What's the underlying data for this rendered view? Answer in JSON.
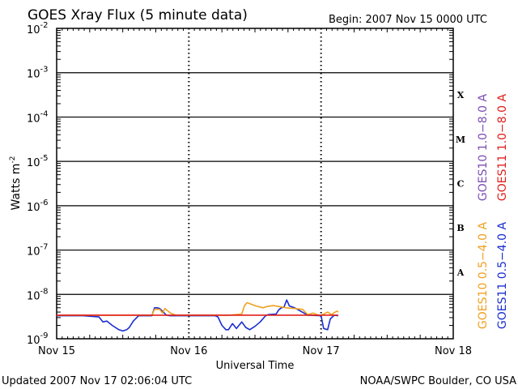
{
  "chart_data": {
    "type": "line",
    "title": "GOES Xray Flux (5 minute data)",
    "begin_label": "Begin:  2007 Nov 15 0000 UTC",
    "ylabel": "Watts m",
    "ylabel_sup": "-2",
    "xlabel": "Universal Time",
    "x_tick_labels": [
      "Nov 15",
      "Nov 16",
      "Nov 17",
      "Nov 18"
    ],
    "xlim_days": [
      0,
      3
    ],
    "y_scale": "log",
    "ylim": [
      1e-09,
      0.01
    ],
    "y_tick_labels": [
      {
        "base": "10",
        "exp": "-2"
      },
      {
        "base": "10",
        "exp": "-3"
      },
      {
        "base": "10",
        "exp": "-4"
      },
      {
        "base": "10",
        "exp": "-5"
      },
      {
        "base": "10",
        "exp": "-6"
      },
      {
        "base": "10",
        "exp": "-7"
      },
      {
        "base": "10",
        "exp": "-8"
      },
      {
        "base": "10",
        "exp": "-9"
      }
    ],
    "flare_classes": [
      {
        "label": "X",
        "flux": 0.0001
      },
      {
        "label": "M",
        "flux": 1e-05
      },
      {
        "label": "C",
        "flux": 1e-06
      },
      {
        "label": "B",
        "flux": 1e-07
      },
      {
        "label": "A",
        "flux": 1e-08
      }
    ],
    "legend": [
      {
        "label": "GOES10 1.0−8.0 A",
        "color": "#7b4fb3"
      },
      {
        "label": "GOES11 1.0−8.0 A",
        "color": "#e0201c"
      },
      {
        "label": "GOES10 0.5−4.0 A",
        "color": "#f0a020"
      },
      {
        "label": "GOES11 0.5−4.0 A",
        "color": "#1a2ed0"
      }
    ],
    "series": [
      {
        "name": "GOES11 0.5−4.0 A",
        "color": "#1a2ed0",
        "x_days": [
          0.0,
          0.2,
          0.32,
          0.35,
          0.38,
          0.42,
          0.47,
          0.5,
          0.53,
          0.55,
          0.58,
          0.62,
          0.66,
          0.72,
          0.74,
          0.76,
          0.78,
          0.8,
          0.83,
          0.86,
          0.9,
          1.0,
          1.2,
          1.22,
          1.25,
          1.28,
          1.3,
          1.33,
          1.36,
          1.4,
          1.43,
          1.46,
          1.5,
          1.54,
          1.58,
          1.6,
          1.66,
          1.68,
          1.7,
          1.72,
          1.74,
          1.76,
          1.8,
          1.9,
          2.0,
          2.02,
          2.05,
          2.07,
          2.1,
          2.13
        ],
        "y": [
          3.3e-09,
          3.3e-09,
          3.1e-09,
          2.4e-09,
          2.5e-09,
          2e-09,
          1.6e-09,
          1.5e-09,
          1.6e-09,
          1.8e-09,
          2.5e-09,
          3.3e-09,
          3.3e-09,
          3.3e-09,
          5e-09,
          5e-09,
          4.8e-09,
          4.2e-09,
          3.4e-09,
          3.3e-09,
          3.3e-09,
          3.3e-09,
          3.3e-09,
          3.1e-09,
          2e-09,
          1.6e-09,
          1.6e-09,
          2.2e-09,
          1.7e-09,
          2.4e-09,
          1.8e-09,
          1.6e-09,
          1.9e-09,
          2.4e-09,
          3.3e-09,
          3.5e-09,
          3.6e-09,
          4.5e-09,
          5e-09,
          5.2e-09,
          7.5e-09,
          5.5e-09,
          5e-09,
          3.4e-09,
          3.3e-09,
          1.7e-09,
          1.6e-09,
          2.8e-09,
          3.4e-09,
          3.3e-09
        ]
      },
      {
        "name": "GOES10 0.5−4.0 A",
        "color": "#f0a020",
        "x_days": [
          0.0,
          0.2,
          0.4,
          0.6,
          0.72,
          0.74,
          0.78,
          0.8,
          0.82,
          0.86,
          0.9,
          1.0,
          1.2,
          1.3,
          1.4,
          1.42,
          1.44,
          1.46,
          1.5,
          1.56,
          1.6,
          1.64,
          1.7,
          1.74,
          1.8,
          1.86,
          1.88,
          1.9,
          1.94,
          1.98,
          2.0,
          2.02,
          2.05,
          2.08,
          2.1,
          2.12,
          2.13
        ],
        "y": [
          3.4e-09,
          3.4e-09,
          3.4e-09,
          3.4e-09,
          3.4e-09,
          4.6e-09,
          4.6e-09,
          3.8e-09,
          4.8e-09,
          3.8e-09,
          3.4e-09,
          3.4e-09,
          3.4e-09,
          3.4e-09,
          3.6e-09,
          5.5e-09,
          6.5e-09,
          6.2e-09,
          5.6e-09,
          5e-09,
          5.4e-09,
          5.6e-09,
          5.2e-09,
          5e-09,
          4.8e-09,
          4.6e-09,
          4e-09,
          3.5e-09,
          3.8e-09,
          3.4e-09,
          3.4e-09,
          3.6e-09,
          4e-09,
          3.5e-09,
          3.9e-09,
          4.2e-09,
          4e-09
        ]
      },
      {
        "name": "GOES11 1.0−8.0 A",
        "color": "#e0201c",
        "x_days": [
          0.0,
          2.13
        ],
        "y": [
          3.4e-09,
          3.4e-09
        ]
      }
    ],
    "grid": "horizontal lines at each decade, dashed verticals at day boundaries"
  },
  "footer": {
    "updated": "Updated 2007 Nov 17 02:06:04 UTC",
    "credit": "NOAA/SWPC Boulder, CO USA"
  }
}
